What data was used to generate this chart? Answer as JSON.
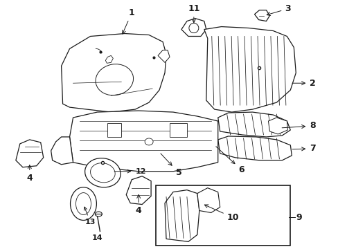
{
  "bg_color": "#ffffff",
  "line_color": "#1a1a1a",
  "figsize": [
    4.89,
    3.6
  ],
  "dpi": 100,
  "lw": 0.9,
  "font_size": 9,
  "font_size_sm": 8
}
